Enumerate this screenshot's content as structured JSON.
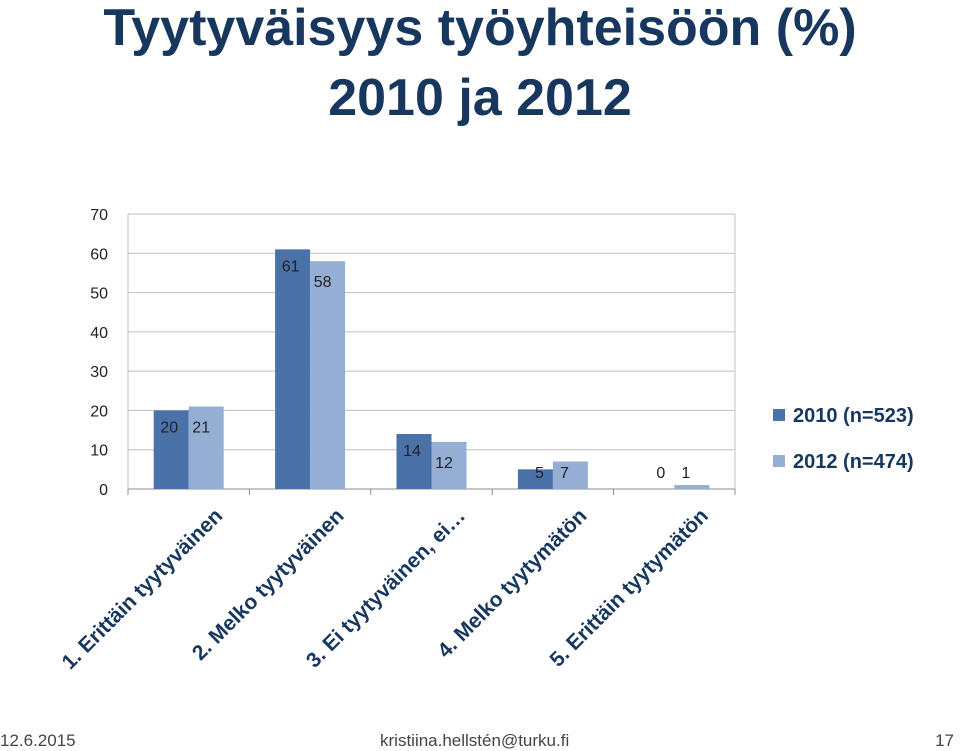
{
  "title_line1": "Tyytyväisyys työyhteisöön (%)",
  "title_line2": "2010 ja 2012",
  "footer": {
    "date": "12.6.2015",
    "email": "kristiina.hellstén@turku.fi",
    "page": "17"
  },
  "colors": {
    "title": "#17375e",
    "series_2010": "#4a72a8",
    "series_2012": "#95aed3"
  },
  "chart_data": {
    "type": "bar",
    "title": "Tyytyväisyys työyhteisöön (%) 2010 ja 2012",
    "categories": [
      "1. Erittäin tyytyväinen",
      "2. Melko tyytyväinen",
      "3. Ei tyytyväinen, ei…",
      "4. Melko tyytymätön",
      "5. Erittäin tyytymätön"
    ],
    "series": [
      {
        "name": "2010 (n=523)",
        "values": [
          20,
          61,
          14,
          5,
          0
        ],
        "color": "#4a72a8"
      },
      {
        "name": "2012 (n=474)",
        "values": [
          21,
          58,
          12,
          7,
          1
        ],
        "color": "#95aed3"
      }
    ],
    "ylim": [
      0,
      70
    ],
    "yticks": [
      0,
      10,
      20,
      30,
      40,
      50,
      60,
      70
    ],
    "grid": true,
    "legend": "right"
  }
}
